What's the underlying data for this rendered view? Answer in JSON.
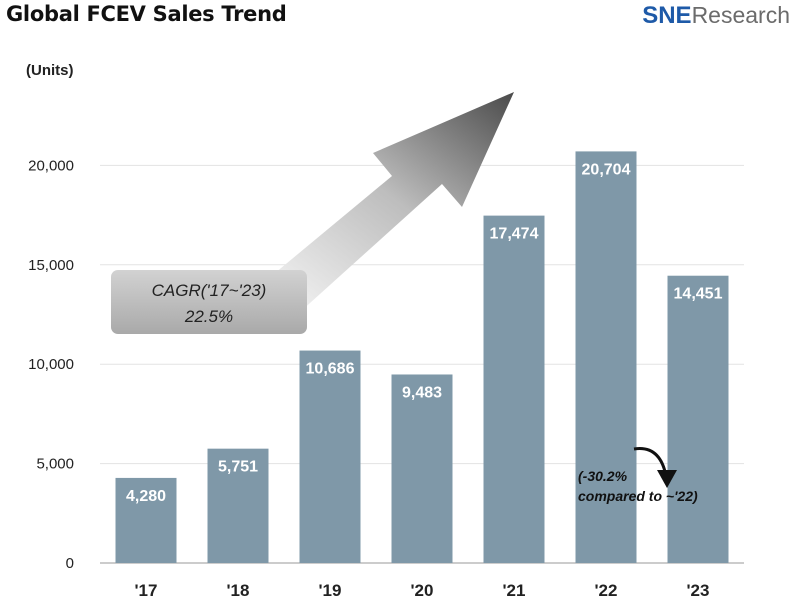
{
  "header": {
    "title": "Global FCEV Sales Trend",
    "brand_sne": "SNE",
    "brand_research": "Research"
  },
  "chart_data": {
    "type": "bar",
    "title": "Global FCEV Sales Trend",
    "ylabel": "(Units)",
    "categories": [
      "'17",
      "'18",
      "'19",
      "'20",
      "'21",
      "'22",
      "'23"
    ],
    "values": [
      4280,
      5751,
      10686,
      9483,
      17474,
      20704,
      14451
    ],
    "value_labels": [
      "4,280",
      "5,751",
      "10,686",
      "9,483",
      "17,474",
      "20,704",
      "14,451"
    ],
    "ytick_values": [
      0,
      5000,
      10000,
      15000,
      20000
    ],
    "ytick_labels": [
      "0",
      "5,000",
      "10,000",
      "15,000",
      "20,000"
    ],
    "ylim": [
      0,
      25000
    ],
    "grid": true,
    "bar_color": "#7f98a8",
    "annotations": {
      "cagr_line1": "CAGR('17~'23)",
      "cagr_line2": "22.5%",
      "note_line1": "(-30.2%",
      "note_line2": "compared to ~'22)"
    }
  }
}
